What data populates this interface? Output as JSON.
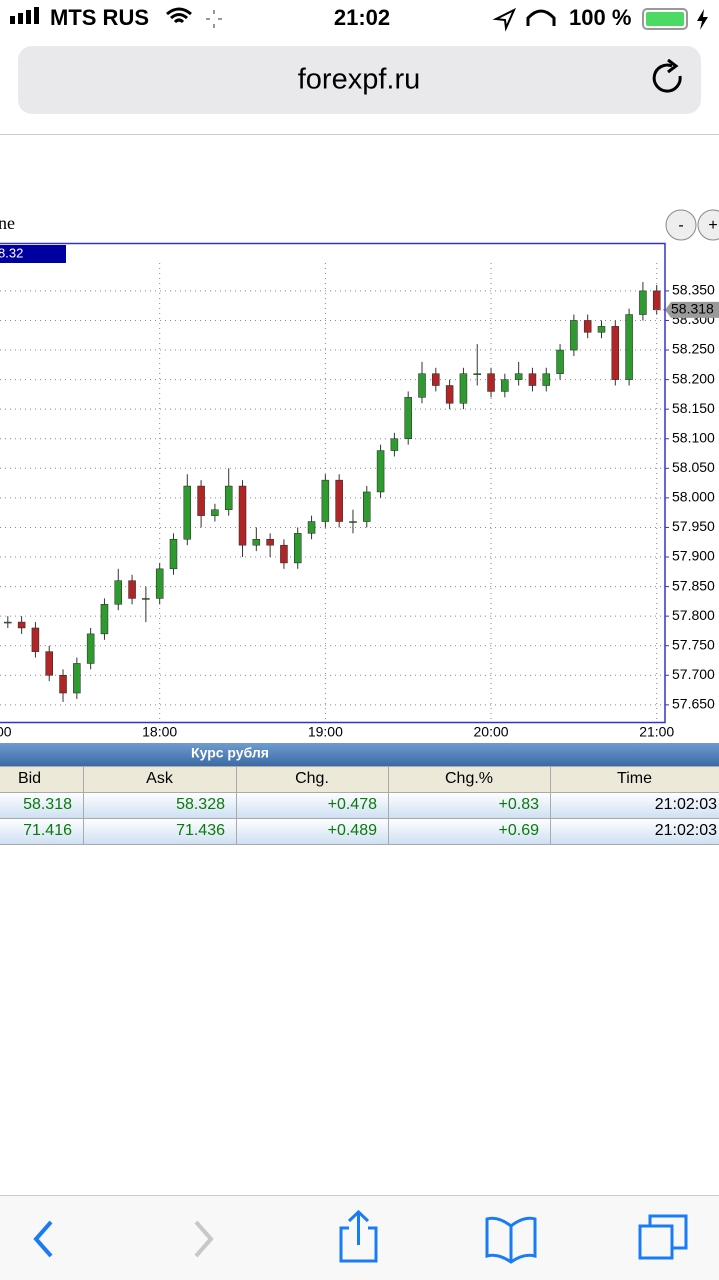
{
  "status_bar": {
    "carrier": "MTS RUS",
    "time": "21:02",
    "battery": "100 %"
  },
  "browser": {
    "url": "forexpf.ru"
  },
  "zoom_buttons": [
    "-",
    "+"
  ],
  "chart_data": {
    "type": "candlestick",
    "title": "ne",
    "price_box": "8.32",
    "x": [
      "17:00",
      "17:05",
      "17:10",
      "17:15",
      "17:20",
      "17:25",
      "17:30",
      "17:35",
      "17:40",
      "17:45",
      "17:50",
      "17:55",
      "18:00",
      "18:05",
      "18:10",
      "18:15",
      "18:20",
      "18:25",
      "18:30",
      "18:35",
      "18:40",
      "18:45",
      "18:50",
      "18:55",
      "19:00",
      "19:05",
      "19:10",
      "19:15",
      "19:20",
      "19:25",
      "19:30",
      "19:35",
      "19:40",
      "19:45",
      "19:50",
      "19:55",
      "20:00",
      "20:05",
      "20:10",
      "20:15",
      "20:20",
      "20:25",
      "20:30",
      "20:35",
      "20:40",
      "20:45",
      "20:50",
      "20:55",
      "21:00"
    ],
    "open": [
      57.78,
      57.79,
      57.79,
      57.78,
      57.74,
      57.7,
      57.67,
      57.72,
      57.77,
      57.82,
      57.86,
      57.83,
      57.83,
      57.88,
      57.93,
      58.02,
      57.97,
      57.98,
      58.02,
      57.92,
      57.93,
      57.92,
      57.89,
      57.94,
      57.96,
      58.03,
      57.96,
      57.96,
      58.01,
      58.08,
      58.1,
      58.17,
      58.21,
      58.19,
      58.16,
      58.21,
      58.21,
      58.18,
      58.2,
      58.21,
      58.19,
      58.21,
      58.25,
      58.3,
      58.28,
      58.29,
      58.2,
      58.31,
      58.35
    ],
    "high": [
      57.8,
      57.8,
      57.8,
      57.79,
      57.75,
      57.71,
      57.73,
      57.78,
      57.83,
      57.88,
      57.87,
      57.85,
      57.89,
      57.94,
      58.04,
      58.03,
      57.99,
      58.05,
      58.03,
      57.95,
      57.94,
      57.93,
      57.95,
      57.97,
      58.04,
      58.04,
      57.98,
      58.02,
      58.09,
      58.11,
      58.18,
      58.23,
      58.22,
      58.2,
      58.22,
      58.26,
      58.22,
      58.21,
      58.23,
      58.22,
      58.22,
      58.26,
      58.31,
      58.31,
      58.3,
      58.3,
      58.32,
      58.365,
      58.36
    ],
    "low": [
      57.77,
      57.78,
      57.77,
      57.73,
      57.69,
      57.655,
      57.66,
      57.71,
      57.76,
      57.81,
      57.82,
      57.79,
      57.82,
      57.87,
      57.92,
      57.95,
      57.96,
      57.97,
      57.9,
      57.91,
      57.9,
      57.88,
      57.88,
      57.93,
      57.95,
      57.95,
      57.94,
      57.95,
      58.0,
      58.07,
      58.09,
      58.16,
      58.18,
      58.15,
      58.15,
      58.19,
      58.17,
      58.17,
      58.19,
      58.18,
      58.18,
      58.2,
      58.24,
      58.27,
      58.27,
      58.19,
      58.19,
      58.3,
      58.31
    ],
    "close": [
      57.79,
      57.79,
      57.78,
      57.74,
      57.7,
      57.67,
      57.72,
      57.77,
      57.82,
      57.86,
      57.83,
      57.83,
      57.88,
      57.93,
      58.02,
      57.97,
      57.98,
      58.02,
      57.92,
      57.93,
      57.92,
      57.89,
      57.94,
      57.96,
      58.03,
      57.96,
      57.96,
      58.01,
      58.08,
      58.1,
      58.17,
      58.21,
      58.19,
      58.16,
      58.21,
      58.21,
      58.18,
      58.2,
      58.21,
      58.19,
      58.21,
      58.25,
      58.3,
      58.28,
      58.29,
      58.2,
      58.31,
      58.35,
      58.318
    ],
    "up_color": "#2f9a2f",
    "down_color": "#b02626",
    "current_price": 58.318,
    "xlim": [
      "17:00",
      "21:03"
    ],
    "xticks": [
      "17:00",
      "18:00",
      "19:00",
      "20:00",
      "21:00"
    ],
    "ylim": [
      57.621,
      58.431
    ],
    "yticks": [
      {
        "value": 57.65,
        "label": "57.650"
      },
      {
        "value": 57.7,
        "label": "57.700"
      },
      {
        "value": 57.75,
        "label": "57.750"
      },
      {
        "value": 57.8,
        "label": "57.800"
      },
      {
        "value": 57.85,
        "label": "57.850"
      },
      {
        "value": 57.9,
        "label": "57.900"
      },
      {
        "value": 57.95,
        "label": "57.950"
      },
      {
        "value": 58,
        "label": "58.000"
      },
      {
        "value": 58.05,
        "label": "58.050"
      },
      {
        "value": 58.1,
        "label": "58.100"
      },
      {
        "value": 58.15,
        "label": "58.150"
      },
      {
        "value": 58.2,
        "label": "58.200"
      },
      {
        "value": 58.25,
        "label": "58.250"
      },
      {
        "value": 58.3,
        "label": "58.300"
      },
      {
        "value": 58.35,
        "label": "58.350"
      }
    ],
    "grid": true
  },
  "table": {
    "title": "Курс рубля",
    "columns": [
      "Bid",
      "Ask",
      "Chg.",
      "Chg.%",
      "Time"
    ],
    "rows": [
      [
        "58.318",
        "58.328",
        "+0.478",
        "+0.83",
        "21:02:03"
      ],
      [
        "71.416",
        "71.436",
        "+0.489",
        "+0.69",
        "21:02:03"
      ]
    ]
  }
}
